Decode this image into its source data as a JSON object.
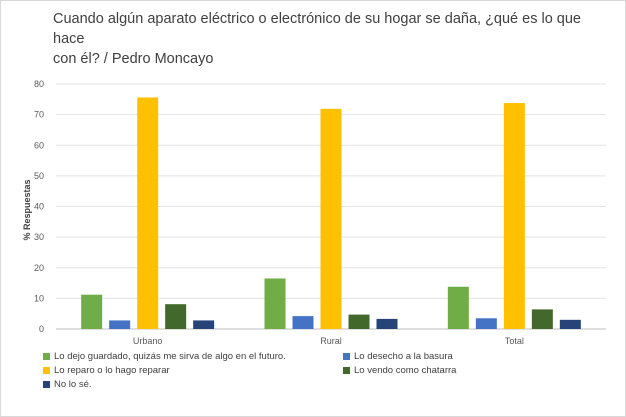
{
  "chart_data": {
    "type": "bar",
    "title_line1": "Cuando algún aparato eléctrico o electrónico de su hogar se daña, ¿qué es lo que hace",
    "title_line2": "con él?  / Pedro Moncayo",
    "xlabel": "",
    "ylabel": "% Respuestas",
    "ylim": [
      0,
      80
    ],
    "yticks": [
      0,
      10,
      20,
      30,
      40,
      50,
      60,
      70,
      80
    ],
    "grid": true,
    "legend_position": "bottom",
    "categories": [
      "Urbano",
      "Rural",
      "Total"
    ],
    "series": [
      {
        "name": "Lo dejo guardado, quizás me sirva de algo en el futuro.",
        "color": "#70ad47",
        "values": [
          11.2,
          16.5,
          13.8
        ]
      },
      {
        "name": "Lo desecho a la basura",
        "color": "#4472c4",
        "values": [
          2.8,
          4.2,
          3.5
        ]
      },
      {
        "name": "Lo reparo o lo hago reparar",
        "color": "#ffc000",
        "values": [
          75.6,
          71.9,
          73.8
        ]
      },
      {
        "name": "Lo vendo como chatarra",
        "color": "#43682b",
        "values": [
          8.1,
          4.7,
          6.4
        ]
      },
      {
        "name": "No lo sé.",
        "color": "#264478",
        "values": [
          2.8,
          3.3,
          3.0
        ]
      }
    ]
  }
}
